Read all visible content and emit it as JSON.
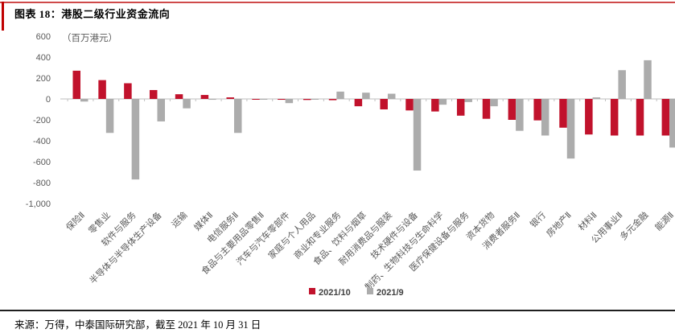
{
  "header": {
    "title": "图表 18：港股二级行业资金流向"
  },
  "footer": {
    "source": "来源：万得，中泰国际研究部，截至 2021 年 10 月 31 日"
  },
  "colors": {
    "series_2021_10": "#c1122c",
    "series_2021_9": "#acacac",
    "accent_red": "#c00000",
    "axis_line": "#bfbfbf",
    "tick_text": "#595959",
    "footer_rule": "#1f1f1f"
  },
  "chart_data": {
    "type": "bar",
    "title": "港股二级行业资金流向",
    "unit_label": "（百万港元）",
    "xlabel": "",
    "ylabel": "百万港元",
    "ylim": [
      -1000,
      600
    ],
    "yticks": [
      600,
      400,
      200,
      0,
      -200,
      -400,
      -600,
      -800,
      -1000
    ],
    "grid": false,
    "legend_position": "bottom",
    "categories": [
      "保险Ⅱ",
      "零售业",
      "软件与服务",
      "半导体与半导体生产设备",
      "运输",
      "媒体Ⅱ",
      "电信服务Ⅱ",
      "食品与主要用品零售Ⅱ",
      "汽车与汽车零部件",
      "家庭与个人用品",
      "商业和专业服务",
      "食品、饮料与烟草",
      "耐用消费品与服装",
      "技术硬件与设备",
      "制药、生物科技与生命科学",
      "医疗保健设备与服务",
      "资本货物",
      "消费者服务Ⅱ",
      "银行",
      "房地产Ⅱ",
      "材料Ⅱ",
      "公用事业Ⅱ",
      "多元金融",
      "能源Ⅱ"
    ],
    "series": [
      {
        "name": "2021/10",
        "color": "#c1122c",
        "values": [
          270,
          180,
          150,
          85,
          45,
          38,
          15,
          -5,
          -8,
          -10,
          -12,
          -70,
          -100,
          -110,
          -120,
          -160,
          -190,
          -200,
          -205,
          -275,
          -340,
          -350,
          -350,
          -350
        ]
      },
      {
        "name": "2021/9",
        "color": "#acacac",
        "values": [
          -25,
          -325,
          -770,
          -215,
          -90,
          -8,
          -325,
          -5,
          -40,
          -5,
          70,
          60,
          50,
          -685,
          -55,
          -30,
          -70,
          -305,
          -350,
          -570,
          15,
          275,
          370,
          -465
        ]
      }
    ]
  }
}
